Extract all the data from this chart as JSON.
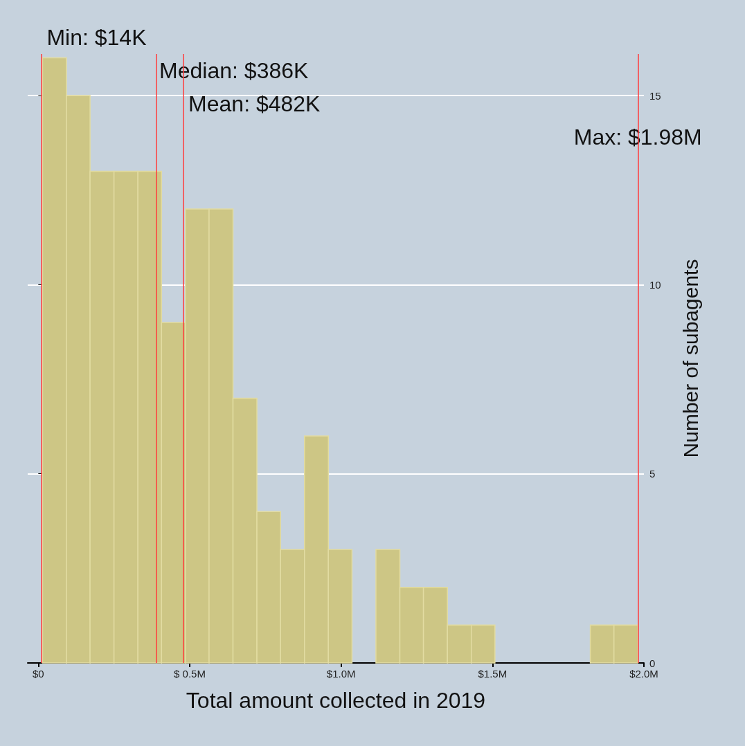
{
  "chart_data": {
    "type": "histogram",
    "xlabel": "Total amount collected in 2019",
    "ylabel": "Number of subagents",
    "bins": [
      0.014,
      0.093,
      0.171,
      0.25,
      0.329,
      0.407,
      0.486,
      0.564,
      0.643,
      0.722,
      0.8,
      0.879,
      0.958,
      1.036,
      1.115,
      1.194,
      1.272,
      1.351,
      1.43,
      1.508,
      1.587,
      1.665,
      1.744,
      1.823,
      1.901,
      1.98
    ],
    "values": [
      16,
      15,
      13,
      13,
      13,
      9,
      12,
      12,
      7,
      4,
      3,
      6,
      3,
      0,
      3,
      2,
      2,
      1,
      1,
      0,
      0,
      0,
      0,
      1,
      1
    ],
    "color": "#cdc685",
    "xlim": [
      -0.035,
      2.0
    ],
    "xticks": [
      {
        "value": 0,
        "label": "$0"
      },
      {
        "value": 0.5,
        "label": "$ 0.5M"
      },
      {
        "value": 1.0,
        "label": "$1.0M"
      },
      {
        "value": 1.5,
        "label": "$1.5M"
      },
      {
        "value": 2.0,
        "label": "$2.0M"
      }
    ],
    "ylim": [
      0,
      16.1
    ],
    "yticks": [
      0,
      5,
      10,
      15
    ],
    "grid": "y",
    "ref_lines": [
      {
        "axis": "x",
        "value": 0.014,
        "label": "Min: $14K",
        "color": "#ff3b3b"
      },
      {
        "axis": "x",
        "value": 0.386,
        "label": "Median: $386K",
        "color": "#ff3b3b"
      },
      {
        "axis": "x",
        "value": 0.482,
        "label": "Mean: $482K",
        "color": "#ff3b3b"
      },
      {
        "axis": "x",
        "value": 1.98,
        "label": "Max: $1.98M",
        "color": "#ff3b3b"
      }
    ]
  }
}
